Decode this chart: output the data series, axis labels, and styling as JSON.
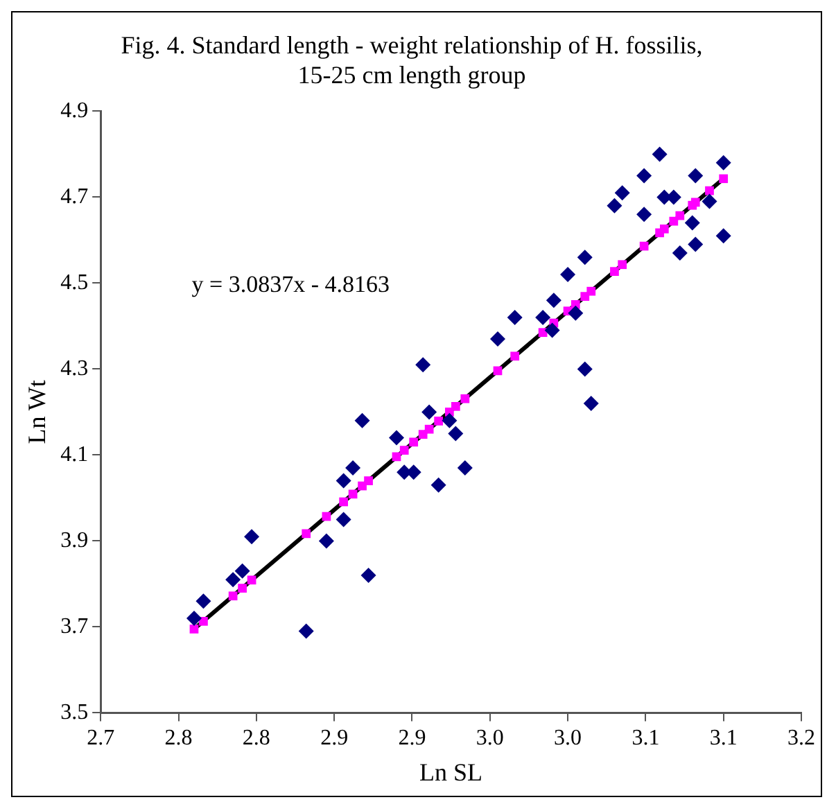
{
  "chart_data": {
    "type": "scatter",
    "title": "Fig. 4. Standard length - weight relationship of H. fossilis, 15-25 cm length group",
    "xlabel": "Ln SL",
    "ylabel": "Ln Wt",
    "annotations": [
      "y = 3.0837x - 4.8163"
    ],
    "xlim": [
      2.7,
      3.15
    ],
    "xticks": [
      {
        "value": 2.7,
        "label": "2.7"
      },
      {
        "value": 2.75,
        "label": "2.8"
      },
      {
        "value": 2.8,
        "label": "2.8"
      },
      {
        "value": 2.85,
        "label": "2.9"
      },
      {
        "value": 2.9,
        "label": "2.9"
      },
      {
        "value": 2.95,
        "label": "3.0"
      },
      {
        "value": 3.0,
        "label": "3.0"
      },
      {
        "value": 3.05,
        "label": "3.1"
      },
      {
        "value": 3.1,
        "label": "3.1"
      },
      {
        "value": 3.15,
        "label": "3.2"
      }
    ],
    "ylim": [
      3.5,
      4.9
    ],
    "yticks": [
      3.5,
      3.7,
      3.9,
      4.1,
      4.3,
      4.5,
      4.7,
      4.9
    ],
    "grid": false,
    "legend": false,
    "series": [
      {
        "type": "scatter",
        "marker": "diamond",
        "color": "#000080",
        "x": [
          2.76,
          2.766,
          2.785,
          2.791,
          2.797,
          2.832,
          2.845,
          2.856,
          2.856,
          2.862,
          2.868,
          2.872,
          2.89,
          2.895,
          2.901,
          2.907,
          2.911,
          2.917,
          2.924,
          2.928,
          2.934,
          2.955,
          2.966,
          2.984,
          2.99,
          2.991,
          3.0,
          3.005,
          3.011,
          3.011,
          3.015,
          3.03,
          3.035,
          3.049,
          3.049,
          3.059,
          3.062,
          3.068,
          3.072,
          3.08,
          3.082,
          3.082,
          3.091,
          3.1,
          3.1
        ],
        "values": [
          3.72,
          3.76,
          3.81,
          3.83,
          3.91,
          3.69,
          3.9,
          3.95,
          4.04,
          4.07,
          4.18,
          3.82,
          4.14,
          4.06,
          4.06,
          4.31,
          4.2,
          4.03,
          4.18,
          4.15,
          4.07,
          4.37,
          4.42,
          4.42,
          4.39,
          4.46,
          4.52,
          4.43,
          4.56,
          4.3,
          4.22,
          4.68,
          4.71,
          4.75,
          4.66,
          4.8,
          4.7,
          4.7,
          4.57,
          4.64,
          4.75,
          4.59,
          4.69,
          4.78,
          4.61
        ]
      },
      {
        "type": "scatter",
        "marker": "square",
        "color": "#ff00ff",
        "x": [
          2.76,
          2.766,
          2.785,
          2.791,
          2.797,
          2.832,
          2.845,
          2.856,
          2.862,
          2.868,
          2.872,
          2.89,
          2.895,
          2.901,
          2.907,
          2.911,
          2.917,
          2.924,
          2.928,
          2.934,
          2.955,
          2.966,
          2.984,
          2.99,
          2.991,
          3.0,
          3.005,
          3.011,
          3.015,
          3.03,
          3.035,
          3.049,
          3.059,
          3.062,
          3.068,
          3.072,
          3.08,
          3.082,
          3.091,
          3.1
        ],
        "values": [
          3.695,
          3.713,
          3.772,
          3.79,
          3.809,
          3.917,
          3.957,
          3.991,
          4.009,
          4.028,
          4.04,
          4.096,
          4.111,
          4.13,
          4.148,
          4.16,
          4.179,
          4.2,
          4.213,
          4.231,
          4.296,
          4.33,
          4.385,
          null,
          4.407,
          4.435,
          4.45,
          4.469,
          4.481,
          4.527,
          4.543,
          4.586,
          4.617,
          4.626,
          4.644,
          4.657,
          4.681,
          4.688,
          4.715,
          4.743
        ]
      },
      {
        "type": "line",
        "line_style": "solid",
        "marker": "none",
        "color": "#000000",
        "x": [
          2.76,
          3.1
        ],
        "values": [
          3.695,
          4.743
        ]
      }
    ]
  }
}
